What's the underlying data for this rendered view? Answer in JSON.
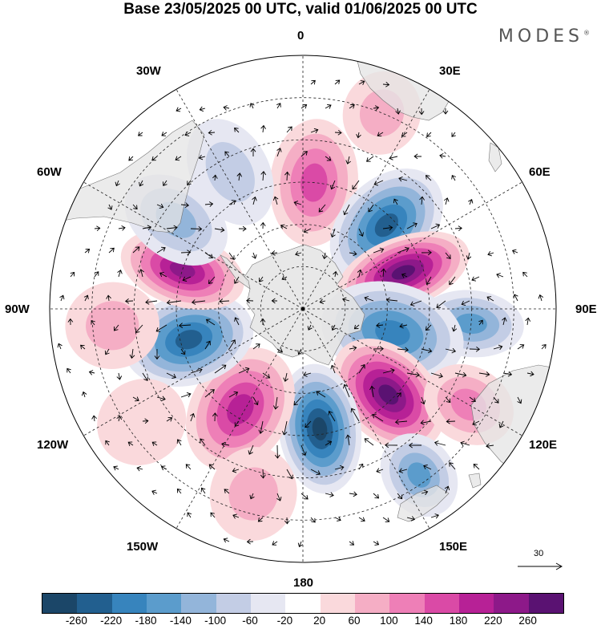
{
  "title": "Base 23/05/2025 00 UTC, valid 01/06/2025 00 UTC",
  "logo": "MODES",
  "logo_mark": "®",
  "longitude_labels": {
    "lon_0": "0",
    "lon_30e": "30E",
    "lon_60e": "60E",
    "lon_90e": "90E",
    "lon_120e": "120E",
    "lon_150e": "150E",
    "lon_180": "180",
    "lon_150w": "150W",
    "lon_120w": "120W",
    "lon_90w": "90W",
    "lon_60w": "60W",
    "lon_30w": "30W"
  },
  "reference_vector": {
    "value": "30"
  },
  "colorbar": {
    "colors": [
      "#1b4668",
      "#225f8f",
      "#3784bd",
      "#5b9ccc",
      "#93b5da",
      "#c3cde5",
      "#e6e7f2",
      "#ffffff",
      "#fad9dc",
      "#f5aec5",
      "#ee7fb7",
      "#da4aa6",
      "#b72196",
      "#8d1989",
      "#5a1272"
    ],
    "tick_labels": [
      "-260",
      "-220",
      "-180",
      "-140",
      "-100",
      "-60",
      "-20",
      "20",
      "60",
      "100",
      "140",
      "180",
      "220",
      "260"
    ]
  },
  "anomaly_cells": [
    {
      "lon": 5,
      "lat": -45,
      "value": 150,
      "aspect": 0.6
    },
    {
      "lon": 45,
      "lat": -48,
      "value": -230,
      "aspect": 0.6
    },
    {
      "lon": 70,
      "lat": -52,
      "value": 270,
      "aspect": 0.45
    },
    {
      "lon": 95,
      "lat": -30,
      "value": -140,
      "aspect": 0.55
    },
    {
      "lon": 105,
      "lat": -57,
      "value": -180,
      "aspect": 0.6
    },
    {
      "lon": 135,
      "lat": -47,
      "value": 270,
      "aspect": 0.6
    },
    {
      "lon": 172,
      "lat": -47,
      "value": -260,
      "aspect": 0.55
    },
    {
      "lon": -148,
      "lat": -48,
      "value": 200,
      "aspect": 0.65
    },
    {
      "lon": -105,
      "lat": -48,
      "value": -250,
      "aspect": 0.6
    },
    {
      "lon": -72,
      "lat": -45,
      "value": 250,
      "aspect": 0.5
    },
    {
      "lon": -55,
      "lat": -35,
      "value": -100,
      "aspect": 0.6
    },
    {
      "lon": -28,
      "lat": -35,
      "value": -60,
      "aspect": 0.6
    },
    {
      "lon": 22,
      "lat": -15,
      "value": 60,
      "aspect": 0.8
    },
    {
      "lon": 120,
      "lat": -22,
      "value": 120,
      "aspect": 0.7
    },
    {
      "lon": 145,
      "lat": -18,
      "value": -150,
      "aspect": 0.7
    },
    {
      "lon": -165,
      "lat": -22,
      "value": 60,
      "aspect": 0.8
    },
    {
      "lon": -125,
      "lat": -20,
      "value": 40,
      "aspect": 0.8
    },
    {
      "lon": -95,
      "lat": -22,
      "value": 60,
      "aspect": 0.8
    }
  ]
}
